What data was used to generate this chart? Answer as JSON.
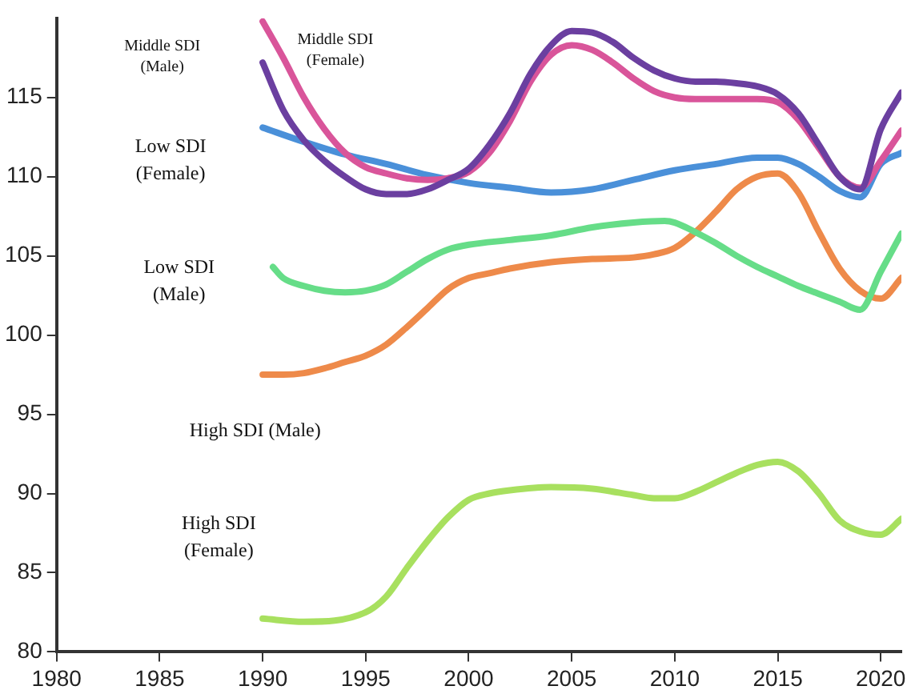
{
  "chart_data": {
    "type": "line",
    "xlim": [
      1980,
      2021
    ],
    "xticks": [
      1980,
      1985,
      1990,
      1995,
      2000,
      2005,
      2010,
      2015,
      2020
    ],
    "ylim": [
      80,
      120
    ],
    "yticks": [
      80,
      85,
      90,
      95,
      100,
      105,
      110,
      115
    ],
    "grid": false,
    "legend": false,
    "marker": "none",
    "annotations": [
      "Middle SDI\n(Male)",
      "Middle SDI\n(Female)",
      "Low SDI\n(Female)",
      "Low SDI\n(Male)",
      "High SDI (Male)",
      "High SDI\n(Female)"
    ],
    "series": [
      {
        "color": "#6b3fa0",
        "x": [
          1990,
          1991,
          1992,
          1993,
          1994,
          1995,
          1996,
          1997,
          1998,
          1999,
          2000,
          2001,
          2002,
          2003,
          2004,
          2005,
          2006,
          2007,
          2008,
          2009,
          2010,
          2011,
          2012,
          2013,
          2014,
          2015,
          2016,
          2017,
          2018,
          2019,
          2020,
          2021
        ],
        "values": [
          117.2,
          114.2,
          112.3,
          111,
          110,
          109.2,
          108.9,
          108.9,
          109.2,
          109.8,
          110.5,
          112,
          114,
          116.5,
          118.3,
          119.2,
          119.1,
          118.5,
          117.5,
          116.7,
          116.2,
          116,
          116,
          115.9,
          115.7,
          115.2,
          114,
          112,
          110,
          109.2,
          113,
          115.3
        ]
      },
      {
        "color": "#d9559a",
        "x": [
          1990,
          1991,
          1992,
          1993,
          1994,
          1995,
          1996,
          1997,
          1998,
          1999,
          2000,
          2001,
          2002,
          2003,
          2004,
          2005,
          2006,
          2007,
          2008,
          2009,
          2010,
          2011,
          2012,
          2013,
          2014,
          2015,
          2016,
          2017,
          2018,
          2019,
          2020,
          2021
        ],
        "values": [
          119.8,
          117.5,
          115,
          113,
          111.5,
          110.6,
          110.2,
          109.9,
          109.8,
          109.9,
          110.3,
          111.5,
          113.5,
          116,
          117.7,
          118.3,
          118,
          117.2,
          116.2,
          115.4,
          115,
          114.9,
          114.9,
          114.9,
          114.9,
          114.7,
          113.6,
          111.8,
          110,
          109.3,
          111,
          112.9
        ]
      },
      {
        "color": "#4a90d9",
        "x": [
          1990,
          1992,
          1994,
          1996,
          1998,
          2000,
          2002,
          2004,
          2006,
          2008,
          2010,
          2012,
          2014,
          2015,
          2016,
          2017,
          2018,
          2019,
          2020,
          2021
        ],
        "values": [
          113.1,
          112.2,
          111.4,
          110.8,
          110.1,
          109.6,
          109.3,
          109,
          109.2,
          109.8,
          110.4,
          110.8,
          111.2,
          111.2,
          110.8,
          110,
          109.1,
          108.7,
          110.8,
          111.5
        ]
      },
      {
        "color": "#66dd88",
        "x": [
          1990.5,
          1991,
          1992,
          1993,
          1994,
          1995,
          1996,
          1997,
          1998,
          1999,
          2000,
          2002,
          2004,
          2006,
          2008,
          2009.5,
          2010,
          2011,
          2012,
          2013,
          2014,
          2015,
          2016,
          2017,
          2018,
          2019,
          2020,
          2021
        ],
        "values": [
          104.3,
          103.6,
          103.1,
          102.8,
          102.7,
          102.8,
          103.2,
          104,
          104.8,
          105.4,
          105.7,
          106,
          106.3,
          106.8,
          107.1,
          107.2,
          107.1,
          106.5,
          105.8,
          105,
          104.3,
          103.7,
          103.1,
          102.6,
          102.1,
          101.6,
          104,
          106.4
        ]
      },
      {
        "color": "#ee8a4a",
        "x": [
          1990,
          1991,
          1992,
          1993,
          1994,
          1995,
          1996,
          1997,
          1998,
          1999,
          2000,
          2001,
          2002,
          2004,
          2006,
          2008,
          2009,
          2010,
          2011,
          2012,
          2013,
          2014,
          2015,
          2016,
          2017,
          2018,
          2019,
          2020,
          2021
        ],
        "values": [
          97.5,
          97.5,
          97.6,
          97.9,
          98.3,
          98.7,
          99.4,
          100.5,
          101.7,
          102.9,
          103.6,
          103.9,
          104.2,
          104.6,
          104.8,
          104.9,
          105.1,
          105.5,
          106.5,
          107.8,
          109.2,
          110,
          110.2,
          109,
          106.5,
          104.2,
          102.8,
          102.3,
          103.6
        ]
      },
      {
        "color": "#a8e05f",
        "x": [
          1990,
          1992,
          1995,
          1996,
          1997,
          1998,
          1999,
          2000,
          2001,
          2002,
          2004,
          2006,
          2008,
          2009,
          2010,
          2011,
          2012,
          2013,
          2014,
          2015,
          2016,
          2017,
          2018,
          2019,
          2020,
          2021
        ],
        "values": [
          82.1,
          81.9,
          82.5,
          83.5,
          85.3,
          87,
          88.5,
          89.6,
          90,
          90.2,
          90.4,
          90.3,
          89.9,
          89.7,
          89.7,
          90.1,
          90.7,
          91.3,
          91.8,
          92,
          91.4,
          90,
          88.3,
          87.6,
          87.4,
          88.4
        ]
      }
    ]
  }
}
